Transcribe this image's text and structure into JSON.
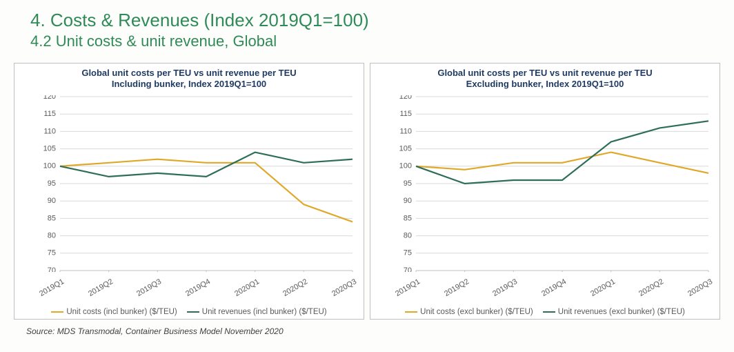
{
  "heading": {
    "main": "4. Costs & Revenues (Index 2019Q1=100)",
    "sub": "4.2 Unit costs & unit revenue, Global"
  },
  "source": "Source: MDS Transmodal, Container Business Model November 2020",
  "shared": {
    "categories": [
      "2019Q1",
      "2019Q2",
      "2019Q3",
      "2019Q4",
      "2020Q1",
      "2020Q2",
      "2020Q3"
    ],
    "ylim": [
      70,
      120
    ],
    "ytick_step": 5,
    "grid_color": "#d9d9d9",
    "axis_color": "#bfbfbf",
    "label_color": "#595959",
    "title_color": "#1f3a63",
    "panel_border": "#bfbfbf",
    "background": "#ffffff",
    "label_fontsize": 11,
    "title_fontsize": 13,
    "x_label_rotation": -30,
    "line_width": 2.2
  },
  "charts": [
    {
      "id": "incl",
      "title_line1": "Global unit costs per TEU vs unit revenue per TEU",
      "title_line2": "Including bunker, Index 2019Q1=100",
      "series": [
        {
          "name": "Unit costs (incl bunker) ($/TEU)",
          "color": "#e0a828",
          "values": [
            100,
            101,
            102,
            101,
            101,
            89,
            84
          ]
        },
        {
          "name": "Unit revenues (incl bunker) ($/TEU)",
          "color": "#2e6e58",
          "values": [
            100,
            97,
            98,
            97,
            104,
            101,
            102
          ]
        }
      ]
    },
    {
      "id": "excl",
      "title_line1": "Global unit costs per TEU vs unit revenue per TEU",
      "title_line2": "Excluding bunker, Index 2019Q1=100",
      "series": [
        {
          "name": "Unit costs (excl bunker) ($/TEU)",
          "color": "#e0a828",
          "values": [
            100,
            99,
            101,
            101,
            104,
            101,
            98
          ]
        },
        {
          "name": "Unit revenues (excl bunker) ($/TEU)",
          "color": "#2e6e58",
          "values": [
            100,
            95,
            96,
            96,
            107,
            111,
            113
          ]
        }
      ]
    }
  ]
}
